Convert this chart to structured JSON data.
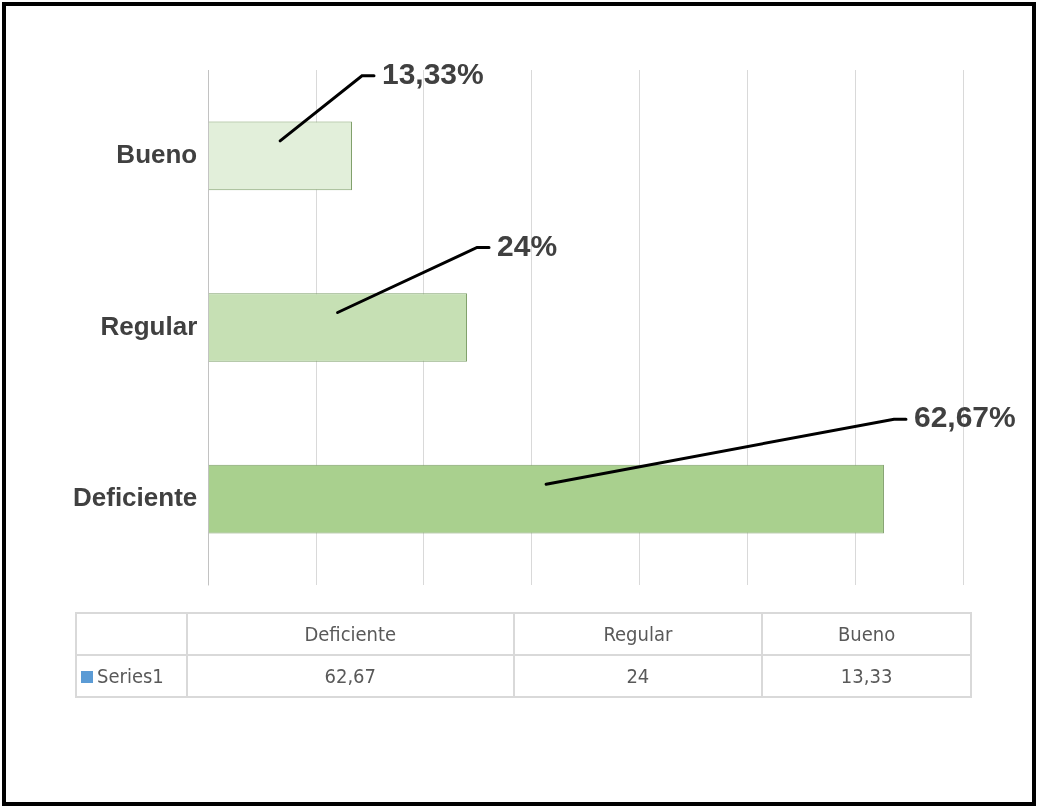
{
  "chart_data": {
    "type": "bar",
    "orientation": "horizontal",
    "categories": [
      "Bueno",
      "Regular",
      "Deficiente"
    ],
    "series": [
      {
        "name": "Series1",
        "color": "#5b9bd5",
        "colors": [
          "#e2efda",
          "#c6e0b4",
          "#a9d08e"
        ],
        "values": [
          13.33,
          24,
          62.67
        ],
        "value_labels": [
          "13,33%",
          "24%",
          "62,67%"
        ]
      }
    ],
    "annotations": [
      "62,67",
      "24",
      "13,33"
    ],
    "data_labels": true,
    "legend": "bottom",
    "grid": "x",
    "tick_labels": "y"
  }
}
